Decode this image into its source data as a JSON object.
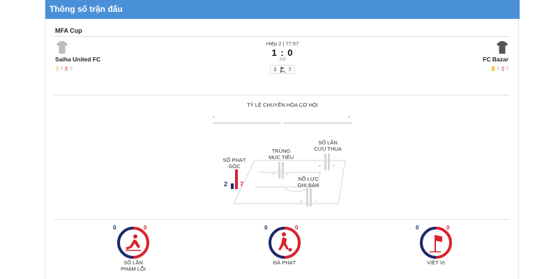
{
  "header": {
    "title": "Thông số trận đấu"
  },
  "match": {
    "competition": "MFA Cup",
    "period": "Hiệp 2 | 77:57",
    "score": "1 : 0",
    "half_time": "0:0",
    "corners_home": "2",
    "corners_away": "7"
  },
  "home": {
    "name": "Saiha United FC",
    "yellow": "0",
    "red": "0"
  },
  "away": {
    "name": "FC Bazar",
    "yellow": "1",
    "red": "0"
  },
  "conversion": {
    "title": "TỶ LỆ CHUYỂN HÓA CƠ HỘI",
    "home": "-",
    "away": "-"
  },
  "pitch_stats": {
    "corners": {
      "label_1": "SỐ PHẠT",
      "label_2": "GÓC",
      "home": "2",
      "away": "7"
    },
    "on_target": {
      "label_1": "TRÚNG",
      "label_2": "MỤC TIÊU",
      "home": "-",
      "away": "-"
    },
    "saves": {
      "label_1": "SỐ LẦN",
      "label_2": "CỨU THUA",
      "home": "-",
      "away": "-"
    },
    "attempts": {
      "label_1": "NỖ LỰC",
      "label_2": "GHI BÀN",
      "home": "-",
      "away": "-"
    }
  },
  "gauges": [
    {
      "label_1": "SỐ LẦN",
      "label_2": "PHẠM LỖI",
      "home": "0",
      "away": "0",
      "icon": "foul-icon"
    },
    {
      "label_1": "ĐÁ PHẠT",
      "label_2": "",
      "home": "0",
      "away": "0",
      "icon": "free-kick-icon"
    },
    {
      "label_1": "VIỆT VỊ",
      "label_2": "",
      "home": "0",
      "away": "0",
      "icon": "offside-icon"
    }
  ],
  "colors": {
    "header": "#4a90d9",
    "home": "#1d2a6b",
    "away": "#d9232d"
  }
}
